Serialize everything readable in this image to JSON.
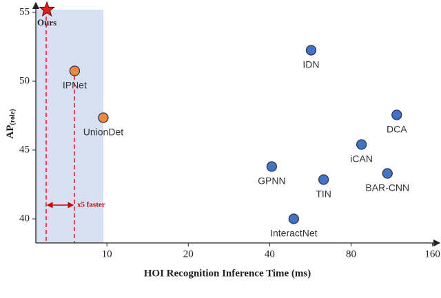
{
  "chart_data": {
    "type": "scatter",
    "xlabel": "HOI Recognition Inference Time (ms)",
    "ylabel": "AP",
    "ylabel_sub": "(role)",
    "xscale": "log",
    "xlim": [
      5.46,
      172
    ],
    "xticks": [
      10,
      20,
      40,
      80,
      160
    ],
    "ylim": [
      38.25,
      55.6
    ],
    "yticks": [
      40,
      45,
      50,
      55
    ],
    "annotation": "x5 faster",
    "points": [
      {
        "label": "Ours",
        "x": 6.0,
        "y": 55.2,
        "color": "#e02020",
        "marker": "star"
      },
      {
        "label": "IPNet",
        "x": 7.6,
        "y": 50.75,
        "color": "#ee8a3c",
        "marker": "circle"
      },
      {
        "label": "UnionDet",
        "x": 9.7,
        "y": 47.35,
        "color": "#ee8a3c",
        "marker": "circle"
      },
      {
        "label": "IDN",
        "x": 56.9,
        "y": 52.25,
        "color": "#4472c4",
        "marker": "circle"
      },
      {
        "label": "DCA",
        "x": 118,
        "y": 47.55,
        "color": "#4472c4",
        "marker": "circle"
      },
      {
        "label": "iCAN",
        "x": 87.4,
        "y": 45.4,
        "color": "#4472c4",
        "marker": "circle"
      },
      {
        "label": "GPNN",
        "x": 40.7,
        "y": 43.8,
        "color": "#4472c4",
        "marker": "circle"
      },
      {
        "label": "TIN",
        "x": 63.3,
        "y": 42.85,
        "color": "#4472c4",
        "marker": "circle"
      },
      {
        "label": "BAR-CNN",
        "x": 109,
        "y": 43.3,
        "color": "#4472c4",
        "marker": "circle"
      },
      {
        "label": "InteractNet",
        "x": 49.1,
        "y": 40.0,
        "color": "#4472c4",
        "marker": "circle"
      }
    ]
  }
}
